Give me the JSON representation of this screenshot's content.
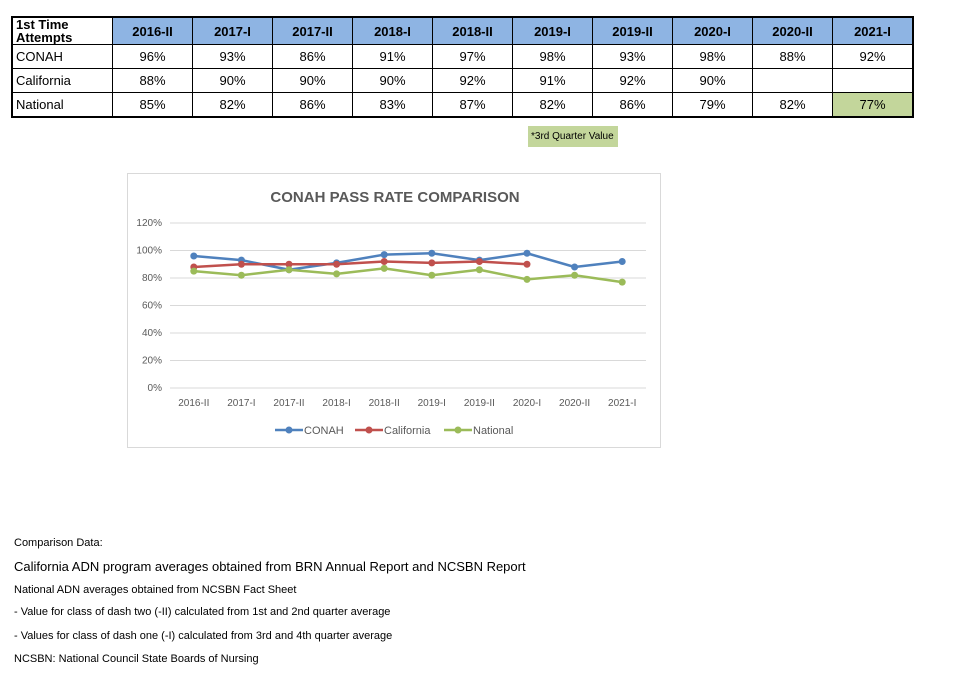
{
  "table": {
    "corner_label": "1st Time Attempts",
    "periods": [
      "2016-II",
      "2017-I",
      "2017-II",
      "2018-I",
      "2018-II",
      "2019-I",
      "2019-II",
      "2020-I",
      "2020-II",
      "2021-I"
    ],
    "rows": [
      {
        "label": "CONAH",
        "values": [
          "96%",
          "93%",
          "86%",
          "91%",
          "97%",
          "98%",
          "93%",
          "98%",
          "88%",
          "92%"
        ]
      },
      {
        "label": "California",
        "values": [
          "88%",
          "90%",
          "90%",
          "90%",
          "92%",
          "91%",
          "92%",
          "90%",
          "",
          ""
        ]
      },
      {
        "label": "National",
        "values": [
          "85%",
          "82%",
          "86%",
          "83%",
          "87%",
          "82%",
          "86%",
          "79%",
          "82%",
          "77%"
        ]
      }
    ],
    "highlight_color": "#c3d69b",
    "header_color": "#8eb4e3"
  },
  "note": "*3rd Quarter Value",
  "chart_data": {
    "type": "line",
    "title": "CONAH PASS RATE COMPARISON",
    "categories": [
      "2016-II",
      "2017-I",
      "2017-II",
      "2018-I",
      "2018-II",
      "2019-I",
      "2019-II",
      "2020-I",
      "2020-II",
      "2021-I"
    ],
    "series": [
      {
        "name": "CONAH",
        "color": "#4f81bd",
        "values": [
          96,
          93,
          86,
          91,
          97,
          98,
          93,
          98,
          88,
          92
        ]
      },
      {
        "name": "California",
        "color": "#c0504d",
        "values": [
          88,
          90,
          90,
          90,
          92,
          91,
          92,
          90,
          null,
          null
        ]
      },
      {
        "name": "National",
        "color": "#9bbb59",
        "values": [
          85,
          82,
          86,
          83,
          87,
          82,
          86,
          79,
          82,
          77
        ]
      }
    ],
    "yticks": [
      "0%",
      "20%",
      "40%",
      "60%",
      "80%",
      "100%",
      "120%"
    ],
    "ylim": [
      0,
      120
    ],
    "grid": true,
    "legend": "bottom"
  },
  "footer": {
    "heading": "Comparison Data:",
    "california": "California ADN program averages obtained from BRN Annual Report and NCSBN Report",
    "national": "National ADN averages obtained from NCSBN Fact Sheet",
    "dash_two": "- Value for class of dash two (-II) calculated from 1st and 2nd quarter average",
    "dash_one": "- Values for class of dash one (-I) calculated from 3rd and 4th quarter average",
    "ncsbn": "NCSBN: National Council State Boards of Nursing"
  }
}
